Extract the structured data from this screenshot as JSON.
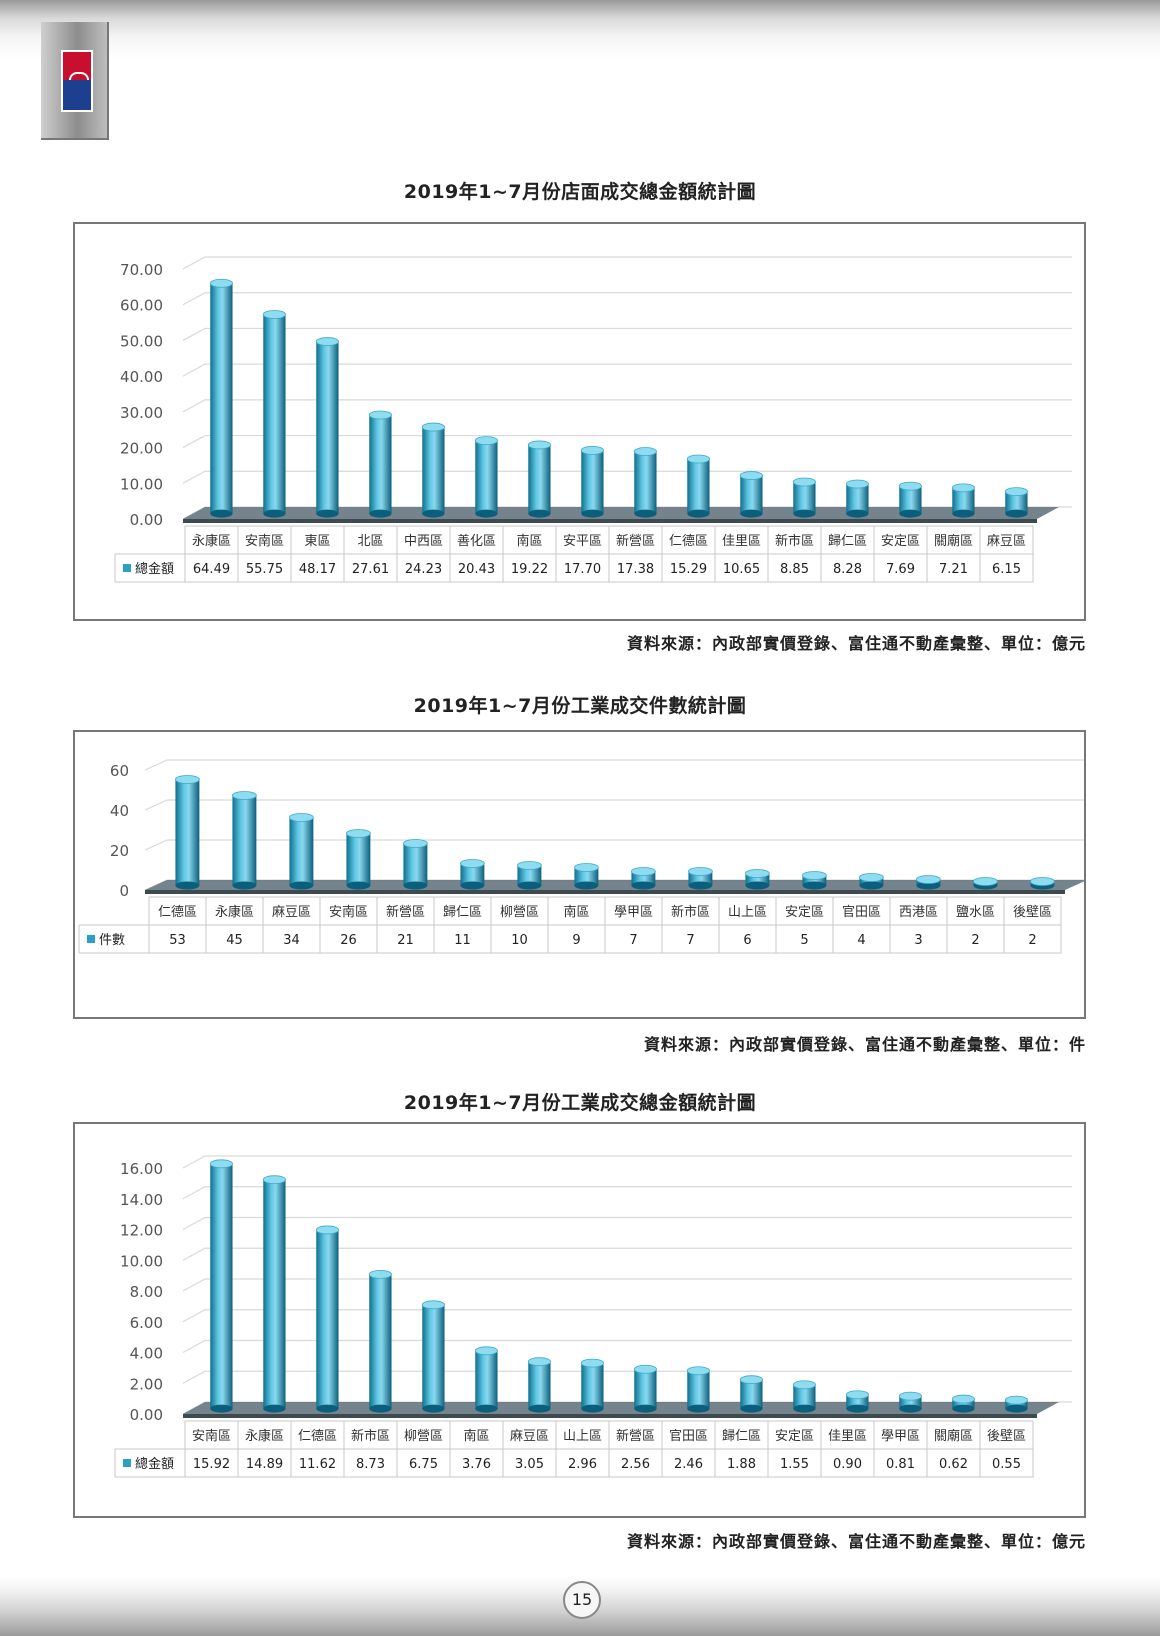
{
  "page_number": "15",
  "charts": [
    {
      "title": "2019年1~7月份店面成交總金額統計圖",
      "source": "資料來源：內政部實價登錄、富住通不動產彙整、單位：億元",
      "legend_label": "總金額",
      "value_labels": [
        "64.49",
        "55.75",
        "48.17",
        "27.61",
        "24.23",
        "20.43",
        "19.22",
        "17.70",
        "17.38",
        "15.29",
        "10.65",
        "8.85",
        "8.28",
        "7.69",
        "7.21",
        "6.15"
      ],
      "tick_labels": [
        "0.00",
        "10.00",
        "20.00",
        "30.00",
        "40.00",
        "50.00",
        "60.00",
        "70.00"
      ]
    },
    {
      "title": "2019年1~7月份工業成交件數統計圖",
      "source": "資料來源：內政部實價登錄、富住通不動產彙整、單位：件",
      "legend_label": "件數",
      "value_labels": [
        "53",
        "45",
        "34",
        "26",
        "21",
        "11",
        "10",
        "9",
        "7",
        "7",
        "6",
        "5",
        "4",
        "3",
        "2",
        "2"
      ],
      "tick_labels": [
        "0",
        "20",
        "40",
        "60"
      ]
    },
    {
      "title": "2019年1~7月份工業成交總金額統計圖",
      "source": "資料來源：內政部實價登錄、富住通不動產彙整、單位：億元",
      "legend_label": "總金額",
      "value_labels": [
        "15.92",
        "14.89",
        "11.62",
        "8.73",
        "6.75",
        "3.76",
        "3.05",
        "2.96",
        "2.56",
        "2.46",
        "1.88",
        "1.55",
        "0.90",
        "0.81",
        "0.62",
        "0.55"
      ],
      "tick_labels": [
        "0.00",
        "2.00",
        "4.00",
        "6.00",
        "8.00",
        "10.00",
        "12.00",
        "14.00",
        "16.00"
      ]
    }
  ],
  "chart_data": [
    {
      "type": "bar",
      "title": "2019年1~7月份店面成交總金額統計圖",
      "categories": [
        "永康區",
        "安南區",
        "東區",
        "北區",
        "中西區",
        "善化區",
        "南區",
        "安平區",
        "新營區",
        "仁德區",
        "佳里區",
        "新市區",
        "歸仁區",
        "安定區",
        "關廟區",
        "麻豆區"
      ],
      "series": [
        {
          "name": "總金額",
          "values": [
            64.49,
            55.75,
            48.17,
            27.61,
            24.23,
            20.43,
            19.22,
            17.7,
            17.38,
            15.29,
            10.65,
            8.85,
            8.28,
            7.69,
            7.21,
            6.15
          ]
        }
      ],
      "ylim": [
        0,
        70
      ],
      "yticks": [
        0,
        10,
        20,
        30,
        40,
        50,
        60,
        70
      ],
      "grid": true,
      "legend": "data-table-left",
      "bar_color": "#2aa0c4"
    },
    {
      "type": "bar",
      "title": "2019年1~7月份工業成交件數統計圖",
      "categories": [
        "仁德區",
        "永康區",
        "麻豆區",
        "安南區",
        "新營區",
        "歸仁區",
        "柳營區",
        "南區",
        "學甲區",
        "新市區",
        "山上區",
        "安定區",
        "官田區",
        "西港區",
        "鹽水區",
        "後壁區"
      ],
      "series": [
        {
          "name": "件數",
          "values": [
            53,
            45,
            34,
            26,
            21,
            11,
            10,
            9,
            7,
            7,
            6,
            5,
            4,
            3,
            2,
            2
          ]
        }
      ],
      "ylim": [
        0,
        60
      ],
      "yticks": [
        0,
        20,
        40,
        60
      ],
      "grid": true,
      "legend": "data-table-left",
      "bar_color": "#2aa0c4"
    },
    {
      "type": "bar",
      "title": "2019年1~7月份工業成交總金額統計圖",
      "categories": [
        "安南區",
        "永康區",
        "仁德區",
        "新市區",
        "柳營區",
        "南區",
        "麻豆區",
        "山上區",
        "新營區",
        "官田區",
        "歸仁區",
        "安定區",
        "佳里區",
        "學甲區",
        "關廟區",
        "後壁區"
      ],
      "series": [
        {
          "name": "總金額",
          "values": [
            15.92,
            14.89,
            11.62,
            8.73,
            6.75,
            3.76,
            3.05,
            2.96,
            2.56,
            2.46,
            1.88,
            1.55,
            0.9,
            0.81,
            0.62,
            0.55
          ]
        }
      ],
      "ylim": [
        0,
        16
      ],
      "yticks": [
        0,
        2,
        4,
        6,
        8,
        10,
        12,
        14,
        16
      ],
      "grid": true,
      "legend": "data-table-left",
      "bar_color": "#2aa0c4"
    }
  ]
}
